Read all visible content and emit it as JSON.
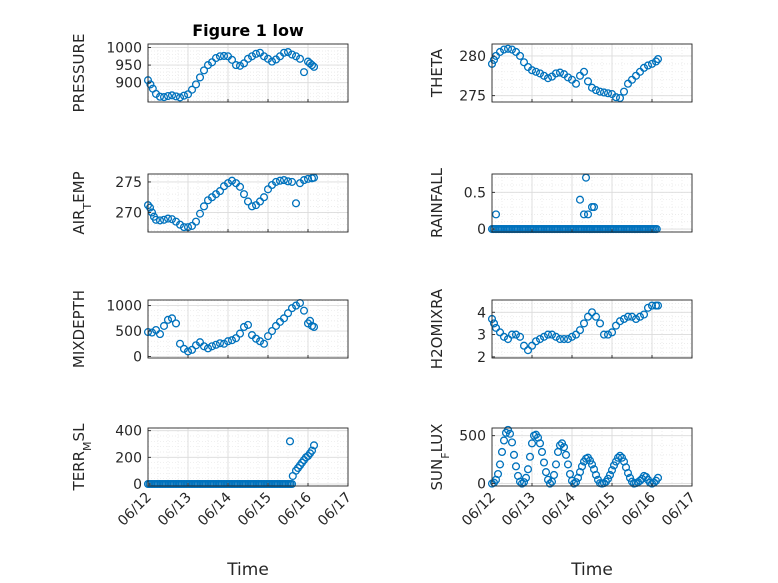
{
  "figure": {
    "title": "Figure 1 low",
    "marker_color": "#0072BD",
    "grid_color": "#dcdcdc",
    "axis_color": "#262626"
  },
  "chart_data": [
    {
      "type": "scatter",
      "title": "Figure 1 low",
      "ylabel": "PRESSURE",
      "xlabel": "",
      "ylim": [
        845,
        1010
      ],
      "yticks": [
        900,
        950,
        1000
      ],
      "xlim": [
        "06/12",
        "06/17"
      ],
      "xticks": [],
      "x": [
        0.0,
        0.06,
        0.12,
        0.2,
        0.3,
        0.4,
        0.5,
        0.6,
        0.7,
        0.8,
        0.9,
        1.0,
        1.1,
        1.2,
        1.3,
        1.4,
        1.5,
        1.6,
        1.7,
        1.8,
        1.9,
        2.0,
        2.1,
        2.2,
        2.3,
        2.4,
        2.5,
        2.6,
        2.7,
        2.8,
        2.9,
        3.0,
        3.1,
        3.2,
        3.3,
        3.4,
        3.5,
        3.6,
        3.7,
        3.8,
        3.9,
        4.0,
        4.05,
        4.1,
        4.15
      ],
      "y": [
        907,
        895,
        883,
        868,
        860,
        859,
        862,
        864,
        861,
        858,
        863,
        867,
        880,
        895,
        915,
        935,
        950,
        958,
        970,
        975,
        976,
        975,
        965,
        950,
        948,
        955,
        968,
        975,
        982,
        985,
        975,
        968,
        960,
        966,
        975,
        985,
        987,
        980,
        975,
        968,
        930,
        960,
        955,
        950,
        945
      ],
      "grid": true
    },
    {
      "type": "scatter",
      "ylabel": "THETA",
      "xlabel": "",
      "ylim": [
        274.2,
        281.5
      ],
      "yticks": [
        275,
        280
      ],
      "xlim": [
        "06/12",
        "06/17"
      ],
      "xticks": [],
      "x": [
        0.0,
        0.05,
        0.1,
        0.2,
        0.3,
        0.4,
        0.5,
        0.6,
        0.7,
        0.8,
        0.9,
        1.0,
        1.1,
        1.2,
        1.3,
        1.4,
        1.5,
        1.6,
        1.7,
        1.8,
        1.9,
        2.0,
        2.1,
        2.2,
        2.3,
        2.4,
        2.5,
        2.6,
        2.7,
        2.8,
        2.9,
        3.0,
        3.1,
        3.2,
        3.3,
        3.4,
        3.5,
        3.6,
        3.7,
        3.8,
        3.9,
        4.0,
        4.1,
        4.15
      ],
      "y": [
        279.0,
        279.5,
        280.0,
        280.5,
        280.8,
        280.9,
        280.8,
        280.5,
        280.0,
        279.2,
        278.6,
        278.2,
        278.0,
        277.8,
        277.5,
        277.2,
        277.4,
        277.8,
        277.9,
        277.7,
        277.3,
        277.0,
        276.5,
        277.5,
        278.0,
        276.8,
        276.0,
        275.7,
        275.5,
        275.4,
        275.3,
        275.2,
        274.8,
        274.7,
        275.5,
        276.5,
        277.0,
        277.5,
        278.0,
        278.5,
        278.8,
        279.0,
        279.3,
        279.6
      ],
      "grid": true
    },
    {
      "type": "scatter",
      "ylabel": "AIR_TEMP",
      "xlabel": "",
      "ylim": [
        266.8,
        276.3
      ],
      "yticks": [
        270,
        275
      ],
      "xlim": [
        "06/12",
        "06/17"
      ],
      "xticks": [],
      "x": [
        0.0,
        0.05,
        0.1,
        0.15,
        0.2,
        0.3,
        0.4,
        0.5,
        0.6,
        0.7,
        0.8,
        0.9,
        1.0,
        1.1,
        1.2,
        1.3,
        1.4,
        1.5,
        1.6,
        1.7,
        1.8,
        1.9,
        2.0,
        2.1,
        2.2,
        2.3,
        2.4,
        2.5,
        2.6,
        2.7,
        2.8,
        2.9,
        3.0,
        3.1,
        3.2,
        3.3,
        3.4,
        3.5,
        3.6,
        3.7,
        3.8,
        3.9,
        4.0,
        4.1,
        4.15
      ],
      "y": [
        271.2,
        270.8,
        270.0,
        269.3,
        268.8,
        268.7,
        268.8,
        269.0,
        268.9,
        268.5,
        268.0,
        267.6,
        267.6,
        267.8,
        268.5,
        269.8,
        271.0,
        272.0,
        272.5,
        273.0,
        273.5,
        274.3,
        274.8,
        275.2,
        274.8,
        274.2,
        273.0,
        271.8,
        271.0,
        271.2,
        271.8,
        272.5,
        273.8,
        274.5,
        275.0,
        275.2,
        275.3,
        275.1,
        275.0,
        271.5,
        274.8,
        275.3,
        275.5,
        275.6,
        275.7
      ],
      "grid": true
    },
    {
      "type": "scatter",
      "ylabel": "RAINFALL",
      "xlabel": "",
      "ylim": [
        -0.04,
        0.75
      ],
      "yticks": [
        0,
        0.5
      ],
      "xlim": [
        "06/12",
        "06/17"
      ],
      "xticks": [],
      "x": [
        0.1,
        2.2,
        2.3,
        2.35,
        2.4,
        2.45,
        2.5,
        2.55
      ],
      "y": [
        0.2,
        0.4,
        0.2,
        0.7,
        0.2,
        0.0,
        0.3,
        0.3
      ],
      "baseline": {
        "from": 0.0,
        "to": 4.15,
        "value": 0
      },
      "grid": true
    },
    {
      "type": "scatter",
      "ylabel": "MIXDEPTH",
      "xlabel": "",
      "ylim": [
        -30,
        1110
      ],
      "yticks": [
        0,
        500,
        1000
      ],
      "xlim": [
        "06/12",
        "06/17"
      ],
      "xticks": [],
      "x": [
        0.0,
        0.1,
        0.2,
        0.3,
        0.4,
        0.5,
        0.6,
        0.7,
        0.8,
        0.9,
        1.0,
        1.1,
        1.2,
        1.3,
        1.4,
        1.5,
        1.6,
        1.7,
        1.8,
        1.9,
        2.0,
        2.1,
        2.2,
        2.3,
        2.4,
        2.5,
        2.6,
        2.7,
        2.8,
        2.9,
        3.0,
        3.1,
        3.2,
        3.3,
        3.4,
        3.5,
        3.6,
        3.7,
        3.8,
        3.9,
        4.0,
        4.05,
        4.1,
        4.15
      ],
      "y": [
        480,
        470,
        520,
        440,
        600,
        720,
        750,
        650,
        250,
        150,
        100,
        130,
        220,
        280,
        200,
        160,
        200,
        230,
        260,
        250,
        300,
        320,
        360,
        450,
        580,
        620,
        420,
        350,
        300,
        250,
        400,
        500,
        600,
        680,
        750,
        850,
        950,
        1000,
        1050,
        900,
        650,
        700,
        600,
        580
      ],
      "grid": true
    },
    {
      "type": "scatter",
      "ylabel": "H2OMIXRA",
      "xlabel": "",
      "ylim": [
        1.95,
        4.55
      ],
      "yticks": [
        2,
        3,
        4
      ],
      "xlim": [
        "06/12",
        "06/17"
      ],
      "xticks": [],
      "x": [
        0.0,
        0.05,
        0.1,
        0.2,
        0.3,
        0.4,
        0.5,
        0.6,
        0.7,
        0.8,
        0.9,
        1.0,
        1.1,
        1.2,
        1.3,
        1.4,
        1.5,
        1.6,
        1.7,
        1.8,
        1.9,
        2.0,
        2.1,
        2.2,
        2.3,
        2.4,
        2.5,
        2.6,
        2.7,
        2.8,
        2.9,
        3.0,
        3.1,
        3.2,
        3.3,
        3.4,
        3.5,
        3.6,
        3.7,
        3.8,
        3.9,
        4.0,
        4.1,
        4.15
      ],
      "y": [
        3.7,
        3.5,
        3.3,
        3.1,
        2.9,
        2.8,
        3.0,
        3.0,
        2.9,
        2.5,
        2.3,
        2.5,
        2.7,
        2.8,
        2.9,
        3.0,
        3.0,
        2.9,
        2.8,
        2.8,
        2.8,
        2.9,
        3.0,
        3.2,
        3.5,
        3.8,
        4.0,
        3.8,
        3.5,
        3.0,
        3.0,
        3.1,
        3.4,
        3.6,
        3.7,
        3.8,
        3.8,
        3.7,
        3.8,
        3.9,
        4.2,
        4.3,
        4.3,
        4.3
      ],
      "grid": true
    },
    {
      "type": "scatter",
      "ylabel": "TERR_MSL",
      "xlabel": "Time",
      "ylim": [
        -15,
        420
      ],
      "yticks": [
        0,
        200,
        400
      ],
      "xlim": [
        "06/12",
        "06/17"
      ],
      "xticks": [
        "06/12",
        "06/13",
        "06/14",
        "06/15",
        "06/16",
        "06/17"
      ],
      "x": [
        3.55,
        3.62,
        3.7,
        3.75,
        3.8,
        3.85,
        3.9,
        3.95,
        4.0,
        4.05,
        4.1,
        4.15
      ],
      "y": [
        320,
        60,
        100,
        120,
        140,
        160,
        180,
        200,
        210,
        230,
        250,
        290
      ],
      "baseline": {
        "from": 0.0,
        "to": 3.6,
        "value": 0
      },
      "grid": true
    },
    {
      "type": "scatter",
      "ylabel": "SUN_FLUX",
      "xlabel": "Time",
      "ylim": [
        -25,
        580
      ],
      "yticks": [
        0,
        500
      ],
      "xlim": [
        "06/12",
        "06/17"
      ],
      "xticks": [
        "06/12",
        "06/13",
        "06/14",
        "06/15",
        "06/16",
        "06/17"
      ],
      "x": [
        0.0,
        0.05,
        0.1,
        0.15,
        0.2,
        0.25,
        0.3,
        0.35,
        0.4,
        0.45,
        0.5,
        0.55,
        0.6,
        0.65,
        0.7,
        0.75,
        0.8,
        0.85,
        0.9,
        0.95,
        1.0,
        1.05,
        1.1,
        1.15,
        1.2,
        1.25,
        1.3,
        1.35,
        1.4,
        1.45,
        1.5,
        1.55,
        1.6,
        1.65,
        1.7,
        1.75,
        1.8,
        1.85,
        1.9,
        1.95,
        2.0,
        2.05,
        2.1,
        2.15,
        2.2,
        2.25,
        2.3,
        2.35,
        2.4,
        2.45,
        2.5,
        2.55,
        2.6,
        2.65,
        2.7,
        2.75,
        2.8,
        2.85,
        2.9,
        2.95,
        3.0,
        3.05,
        3.1,
        3.15,
        3.2,
        3.25,
        3.3,
        3.35,
        3.4,
        3.45,
        3.5,
        3.55,
        3.6,
        3.65,
        3.7,
        3.75,
        3.8,
        3.85,
        3.9,
        3.95,
        4.0,
        4.05,
        4.1,
        4.15
      ],
      "y": [
        0,
        10,
        40,
        100,
        200,
        330,
        450,
        530,
        560,
        520,
        430,
        300,
        180,
        80,
        20,
        0,
        15,
        60,
        150,
        280,
        420,
        500,
        510,
        480,
        420,
        330,
        220,
        120,
        40,
        0,
        20,
        90,
        200,
        330,
        400,
        420,
        380,
        300,
        200,
        100,
        30,
        0,
        15,
        60,
        120,
        180,
        230,
        260,
        270,
        240,
        200,
        150,
        90,
        40,
        5,
        0,
        5,
        20,
        50,
        90,
        140,
        190,
        230,
        270,
        290,
        270,
        230,
        170,
        110,
        60,
        20,
        0,
        5,
        15,
        30,
        50,
        80,
        70,
        40,
        10,
        0,
        10,
        30,
        60
      ],
      "grid": true
    }
  ]
}
